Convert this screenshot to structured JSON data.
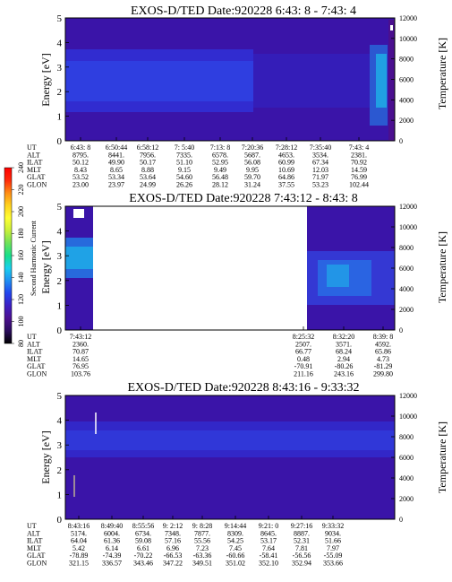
{
  "chart_data": {
    "type": "heatmap",
    "panels": [
      {
        "title": "EXOS-D/TED   Date:920228  6:43: 8 - 7:43: 4",
        "ylabel": "Energy [eV]",
        "ylabel_right": "Temperature [K]",
        "ylim": [
          0,
          5
        ],
        "yticks": [
          "0",
          "1",
          "2",
          "3",
          "4",
          "5"
        ],
        "ylim_right": [
          0,
          12000
        ],
        "yticks_right": [
          "0",
          "2000",
          "4000",
          "6000",
          "8000",
          "10000",
          "12000"
        ],
        "columns": [
          {
            "UT": "6:43: 8",
            "ALT": "8795.",
            "ILAT": "50.12",
            "MLT": "8.43",
            "GLAT": "53.52",
            "GLON": "23.00"
          },
          {
            "UT": "6:50:44",
            "ALT": "8441.",
            "ILAT": "49.90",
            "MLT": "8.65",
            "GLAT": "53.34",
            "GLON": "23.97"
          },
          {
            "UT": "6:58:12",
            "ALT": "7956.",
            "ILAT": "50.17",
            "MLT": "8.88",
            "GLAT": "53.64",
            "GLON": "24.99"
          },
          {
            "UT": "7: 5:40",
            "ALT": "7335.",
            "ILAT": "51.10",
            "MLT": "9.15",
            "GLAT": "54.60",
            "GLON": "26.26"
          },
          {
            "UT": "7:13: 8",
            "ALT": "6578.",
            "ILAT": "52.95",
            "MLT": "9.49",
            "GLAT": "56.48",
            "GLON": "28.12"
          },
          {
            "UT": "7:20:36",
            "ALT": "5687.",
            "ILAT": "56.08",
            "MLT": "9.95",
            "GLAT": "59.70",
            "GLON": "31.24"
          },
          {
            "UT": "7:28:12",
            "ALT": "4653.",
            "ILAT": "60.99",
            "MLT": "10.69",
            "GLAT": "64.86",
            "GLON": "37.55"
          },
          {
            "UT": "7:35:40",
            "ALT": "3534.",
            "ILAT": "67.34",
            "MLT": "12.03",
            "GLAT": "71.97",
            "GLON": "53.23"
          },
          {
            "UT": "7:43: 4",
            "ALT": "2381.",
            "ILAT": "70.92",
            "MLT": "14.59",
            "GLAT": "76.99",
            "GLON": "102.44"
          }
        ]
      },
      {
        "title": "EXOS-D/TED   Date:920228  7:43:12 - 8:43: 8",
        "ylabel": "Energy [eV]",
        "ylabel_right": "Temperature [K]",
        "ylim": [
          0,
          5
        ],
        "yticks": [
          "0",
          "1",
          "2",
          "3",
          "4",
          "5"
        ],
        "ylim_right": [
          0,
          12000
        ],
        "yticks_right": [
          "0",
          "2000",
          "4000",
          "6000",
          "8000",
          "10000",
          "12000"
        ],
        "columns": [
          {
            "UT": "7:43:12",
            "ALT": "2360.",
            "ILAT": "70.87",
            "MLT": "14.65",
            "GLAT": "76.95",
            "GLON": "103.76"
          },
          {
            "UT": "8:25:32",
            "ALT": "2507.",
            "ILAT": "66.77",
            "MLT": "0.48",
            "GLAT": "-70.91",
            "GLON": "211.16"
          },
          {
            "UT": "8:32:20",
            "ALT": "3571.",
            "ILAT": "68.24",
            "MLT": "2.94",
            "GLAT": "-80.26",
            "GLON": "243.16"
          },
          {
            "UT": "8:39: 8",
            "ALT": "4592.",
            "ILAT": "65.86",
            "MLT": "4.73",
            "GLAT": "-81.29",
            "GLON": "299.80"
          }
        ]
      },
      {
        "title": "EXOS-D/TED   Date:920228  8:43:16 - 9:33:32",
        "ylabel": "Energy [eV]",
        "ylabel_right": "Temperature [K]",
        "ylim": [
          0,
          5
        ],
        "yticks": [
          "0",
          "1",
          "2",
          "3",
          "4",
          "5"
        ],
        "ylim_right": [
          0,
          12000
        ],
        "yticks_right": [
          "0",
          "2000",
          "4000",
          "6000",
          "8000",
          "10000",
          "12000"
        ],
        "columns": [
          {
            "UT": "8:43:16",
            "ALT": "5174.",
            "ILAT": "64.04",
            "MLT": "5.42",
            "GLAT": "-78.89",
            "GLON": "321.15"
          },
          {
            "UT": "8:49:40",
            "ALT": "6004.",
            "ILAT": "61.36",
            "MLT": "6.14",
            "GLAT": "-74.39",
            "GLON": "336.57"
          },
          {
            "UT": "8:55:56",
            "ALT": "6734.",
            "ILAT": "59.08",
            "MLT": "6.61",
            "GLAT": "-70.22",
            "GLON": "343.46"
          },
          {
            "UT": "9: 2:12",
            "ALT": "7348.",
            "ILAT": "57.16",
            "MLT": "6.96",
            "GLAT": "-66.53",
            "GLON": "347.22"
          },
          {
            "UT": "9: 8:28",
            "ALT": "7877.",
            "ILAT": "55.56",
            "MLT": "7.23",
            "GLAT": "-63.36",
            "GLON": "349.51"
          },
          {
            "UT": "9:14:44",
            "ALT": "8309.",
            "ILAT": "54.25",
            "MLT": "7.45",
            "GLAT": "-60.66",
            "GLON": "351.02"
          },
          {
            "UT": "9:21: 0",
            "ALT": "8645.",
            "ILAT": "53.17",
            "MLT": "7.64",
            "GLAT": "-58.41",
            "GLON": "352.10"
          },
          {
            "UT": "9:27:16",
            "ALT": "8887.",
            "ILAT": "52.31",
            "MLT": "7.81",
            "GLAT": "-56.56",
            "GLON": "352.94"
          },
          {
            "UT": "9:33:32",
            "ALT": "9034.",
            "ILAT": "51.66",
            "MLT": "7.97",
            "GLAT": "-55.09",
            "GLON": "353.66"
          }
        ]
      }
    ],
    "ephem_labels": [
      "UT",
      "ALT",
      "ILAT",
      "MLT",
      "GLAT",
      "GLON"
    ],
    "colorbar": {
      "label": "Second Harmonic Current",
      "range": [
        80,
        240
      ],
      "ticks": [
        "80",
        "100",
        "120",
        "140",
        "160",
        "180",
        "200",
        "220",
        "240"
      ],
      "colors": [
        "#000000",
        "#2a0c5c",
        "#4b0f8f",
        "#3d1fc2",
        "#2244ee",
        "#1f8ff2",
        "#19d0ee",
        "#18e08a",
        "#6ee25a",
        "#c8f03a",
        "#ffff33",
        "#ffd21e",
        "#ff8c14",
        "#ff2a0a",
        "#ff0000"
      ]
    }
  }
}
